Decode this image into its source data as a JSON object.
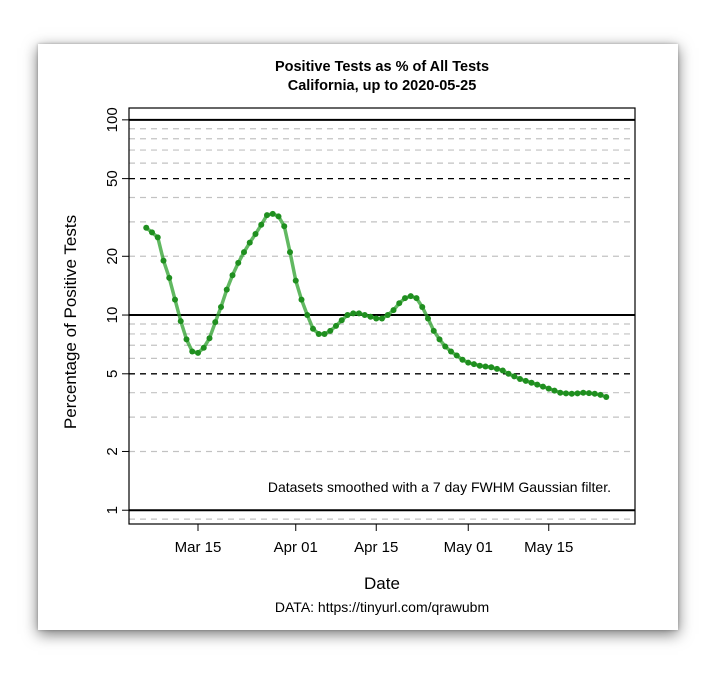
{
  "chart_data": {
    "type": "line",
    "title": "Positive Tests as % of All Tests",
    "subtitle": "California, up to 2020-05-25",
    "xlabel": "Date",
    "ylabel": "Percentage of Positive Tests",
    "y_scale": "log",
    "ylim": [
      0.85,
      115
    ],
    "xlim": [
      "2020-03-03",
      "2020-05-30"
    ],
    "yticks": [
      1,
      2,
      5,
      10,
      20,
      50,
      100
    ],
    "xticks": [
      "Mar 15",
      "Apr 01",
      "Apr 15",
      "May 01",
      "May 15"
    ],
    "xtick_dates": [
      "2020-03-15",
      "2020-04-01",
      "2020-04-15",
      "2020-05-01",
      "2020-05-15"
    ],
    "grid": "horizontal",
    "annotation": "Datasets smoothed with a 7 day FWHM Gaussian filter.",
    "source": "DATA: https://tinyurl.com/qrawubm",
    "colors": {
      "line": "#2ca02c",
      "marker": "#1f8f1f"
    },
    "series": [
      {
        "x": [
          "2020-03-06",
          "2020-03-07",
          "2020-03-08",
          "2020-03-09",
          "2020-03-10",
          "2020-03-11",
          "2020-03-12",
          "2020-03-13",
          "2020-03-14",
          "2020-03-15",
          "2020-03-16",
          "2020-03-17",
          "2020-03-18",
          "2020-03-19",
          "2020-03-20",
          "2020-03-21",
          "2020-03-22",
          "2020-03-23",
          "2020-03-24",
          "2020-03-25",
          "2020-03-26",
          "2020-03-27",
          "2020-03-28",
          "2020-03-29",
          "2020-03-30",
          "2020-03-31",
          "2020-04-01",
          "2020-04-02",
          "2020-04-03",
          "2020-04-04",
          "2020-04-05",
          "2020-04-06",
          "2020-04-07",
          "2020-04-08",
          "2020-04-09",
          "2020-04-10",
          "2020-04-11",
          "2020-04-12",
          "2020-04-13",
          "2020-04-14",
          "2020-04-15",
          "2020-04-16",
          "2020-04-17",
          "2020-04-18",
          "2020-04-19",
          "2020-04-20",
          "2020-04-21",
          "2020-04-22",
          "2020-04-23",
          "2020-04-24",
          "2020-04-25",
          "2020-04-26",
          "2020-04-27",
          "2020-04-28",
          "2020-04-29",
          "2020-04-30",
          "2020-05-01",
          "2020-05-02",
          "2020-05-03",
          "2020-05-04",
          "2020-05-05",
          "2020-05-06",
          "2020-05-07",
          "2020-05-08",
          "2020-05-09",
          "2020-05-10",
          "2020-05-11",
          "2020-05-12",
          "2020-05-13",
          "2020-05-14",
          "2020-05-15",
          "2020-05-16",
          "2020-05-17",
          "2020-05-18",
          "2020-05-19",
          "2020-05-20",
          "2020-05-21",
          "2020-05-22",
          "2020-05-23",
          "2020-05-24",
          "2020-05-25"
        ],
        "values": [
          28.0,
          26.5,
          25.0,
          19.0,
          15.5,
          12.0,
          9.3,
          7.5,
          6.5,
          6.4,
          6.8,
          7.6,
          9.2,
          11.0,
          13.5,
          16.0,
          18.5,
          21.0,
          23.5,
          26.0,
          29.0,
          32.5,
          33.0,
          32.0,
          28.5,
          21.0,
          15.0,
          12.0,
          10.0,
          8.5,
          8.0,
          8.0,
          8.3,
          8.8,
          9.4,
          10.0,
          10.2,
          10.2,
          10.0,
          9.8,
          9.6,
          9.6,
          10.0,
          10.6,
          11.5,
          12.2,
          12.5,
          12.2,
          11.0,
          9.6,
          8.3,
          7.5,
          6.9,
          6.5,
          6.2,
          5.9,
          5.7,
          5.6,
          5.5,
          5.45,
          5.4,
          5.3,
          5.2,
          5.0,
          4.85,
          4.7,
          4.6,
          4.5,
          4.4,
          4.3,
          4.2,
          4.1,
          4.0,
          3.97,
          3.95,
          3.97,
          4.0,
          3.98,
          3.95,
          3.9,
          3.8
        ]
      }
    ]
  }
}
